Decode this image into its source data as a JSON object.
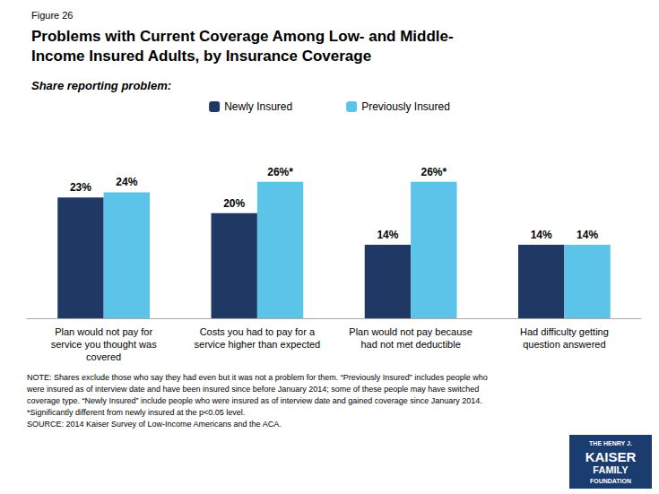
{
  "chart_data": {
    "type": "bar",
    "figure_label": "Figure 26",
    "title": "Problems with Current Coverage Among Low- and Middle-\nIncome Insured Adults, by Insurance Coverage",
    "subtitle": "Share reporting problem:",
    "categories": [
      "Plan would not pay for\nservice you thought was\ncovered",
      "Costs you had to pay for a\nservice higher than expected",
      "Plan would not pay because\nhad not met deductible",
      "Had difficulty getting\nquestion answered"
    ],
    "series": [
      {
        "name": "Newly Insured",
        "color": "#1f3864",
        "values": [
          23,
          20,
          14,
          14
        ],
        "value_labels": [
          "23%",
          "20%",
          "14%",
          "14%"
        ]
      },
      {
        "name": "Previously Insured",
        "color": "#5bc4e8",
        "values": [
          24,
          26,
          26,
          14
        ],
        "value_labels": [
          "24%",
          "26%*",
          "26%*",
          "14%"
        ]
      }
    ],
    "ylim": [
      0,
      35
    ],
    "grid": false,
    "legend": "top",
    "data_labels": true,
    "tick_labels": "x",
    "note": "NOTE: Shares exclude those who say they had even but it was not a problem for them. “Previously Insured” includes people who\nwere insured as of interview date and have been insured since before January 2014; some of these people may have switched\ncoverage type. “Newly Insured” include people who were insured as of interview date and gained coverage since January 2014.\n*Significantly different from newly insured at the p<0.05 level.\nSOURCE: 2014 Kaiser Survey of Low-Income Americans and the ACA.",
    "logo_text": [
      "THE HENRY J.",
      "KAISER",
      "FAMILY",
      "FOUNDATION"
    ]
  }
}
